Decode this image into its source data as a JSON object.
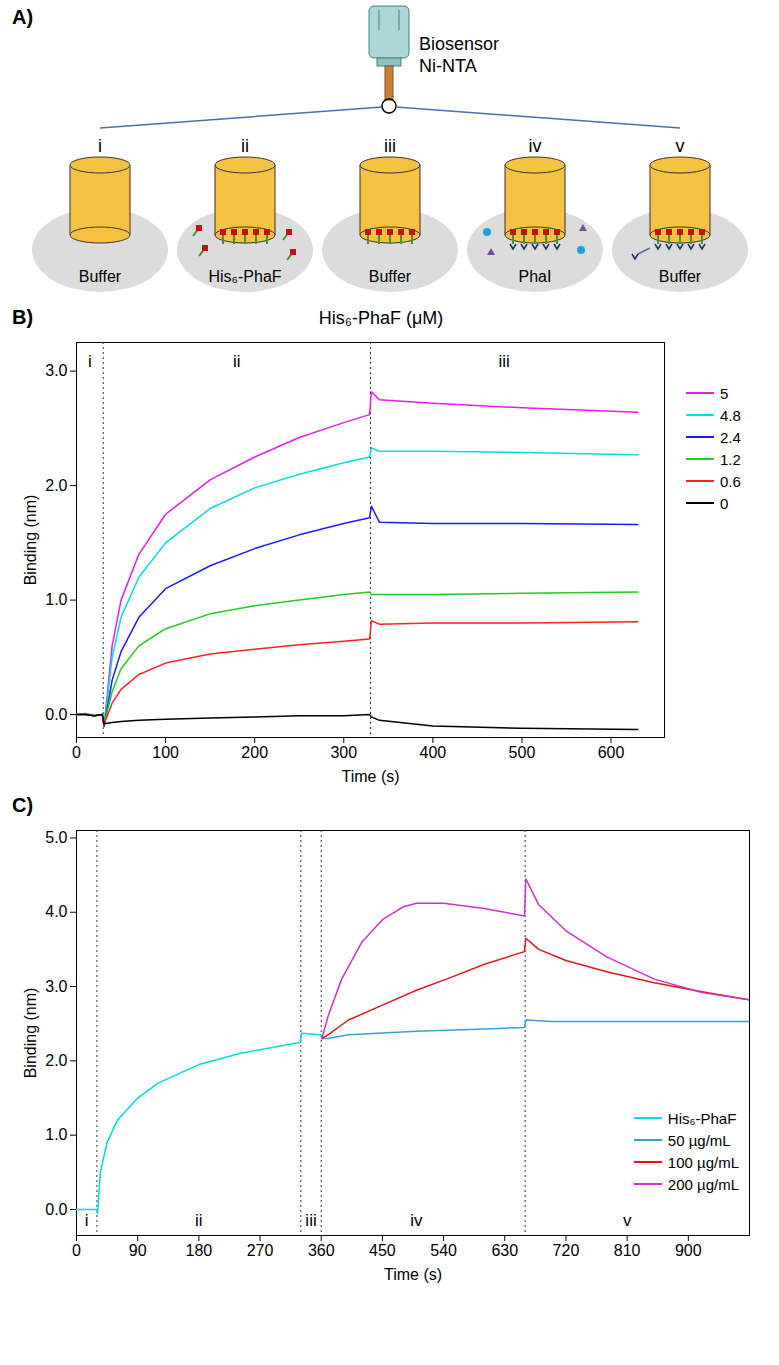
{
  "diagram": {
    "panel_label": "A)",
    "sensor_label": [
      "Biosensor",
      "Ni-NTA"
    ],
    "steps": [
      {
        "label": "i",
        "well": "Buffer"
      },
      {
        "label": "ii",
        "well": "His₆-PhaF"
      },
      {
        "label": "iii",
        "well": "Buffer"
      },
      {
        "label": "iv",
        "well": "PhaI"
      },
      {
        "label": "v",
        "well": "Buffer"
      }
    ]
  },
  "chart_data": [
    {
      "panel_label": "B)",
      "type": "line",
      "title": "His₆-PhaF (μM)",
      "x_label": "Time (s)",
      "y_label": "Binding (nm)",
      "xlim": [
        0,
        660
      ],
      "xticks": [
        0,
        100,
        200,
        300,
        400,
        500,
        600
      ],
      "ylim": [
        -0.2,
        3.25
      ],
      "yticks": [
        0,
        1,
        2,
        3
      ],
      "legend": "right",
      "phase_boundaries": [
        30,
        330
      ],
      "phases": [
        {
          "label": "i",
          "x": 15
        },
        {
          "label": "ii",
          "x": 180
        },
        {
          "label": "iii",
          "x": 480
        }
      ],
      "x": [
        0,
        10,
        20,
        29,
        31,
        40,
        50,
        70,
        100,
        150,
        200,
        250,
        300,
        329,
        331,
        340,
        400,
        500,
        630
      ],
      "series": [
        {
          "name": "5",
          "color": "#e61ee6",
          "values": [
            0,
            0.01,
            -0.01,
            0,
            -0.1,
            0.6,
            1.0,
            1.4,
            1.75,
            2.05,
            2.25,
            2.42,
            2.55,
            2.62,
            2.82,
            2.75,
            2.72,
            2.68,
            2.64
          ]
        },
        {
          "name": "4.8",
          "color": "#00dede",
          "values": [
            0,
            0.01,
            -0.01,
            0,
            -0.1,
            0.5,
            0.85,
            1.2,
            1.5,
            1.8,
            1.98,
            2.1,
            2.2,
            2.25,
            2.33,
            2.3,
            2.3,
            2.29,
            2.27
          ]
        },
        {
          "name": "2.4",
          "color": "#1a1aff",
          "values": [
            0,
            0,
            -0.01,
            0,
            -0.1,
            0.3,
            0.55,
            0.85,
            1.1,
            1.3,
            1.45,
            1.57,
            1.67,
            1.72,
            1.82,
            1.68,
            1.67,
            1.67,
            1.66
          ]
        },
        {
          "name": "1.2",
          "color": "#22cc22",
          "values": [
            0,
            0,
            -0.01,
            0,
            -0.08,
            0.2,
            0.4,
            0.6,
            0.75,
            0.88,
            0.95,
            1.0,
            1.05,
            1.07,
            1.05,
            1.05,
            1.05,
            1.06,
            1.07
          ]
        },
        {
          "name": "0.6",
          "color": "#ff2020",
          "values": [
            0,
            0,
            -0.01,
            0,
            -0.08,
            0.1,
            0.22,
            0.35,
            0.45,
            0.53,
            0.57,
            0.61,
            0.64,
            0.66,
            0.82,
            0.79,
            0.8,
            0.8,
            0.81
          ]
        },
        {
          "name": "0",
          "color": "#000000",
          "values": [
            0,
            0,
            -0.01,
            0,
            -0.08,
            -0.07,
            -0.06,
            -0.05,
            -0.04,
            -0.03,
            -0.02,
            -0.01,
            -0.01,
            0,
            -0.02,
            -0.05,
            -0.1,
            -0.12,
            -0.13
          ]
        }
      ]
    },
    {
      "panel_label": "C)",
      "type": "line",
      "x_label": "Time (s)",
      "y_label": "Binding (nm)",
      "xlim": [
        0,
        990
      ],
      "xticks": [
        0,
        90,
        180,
        270,
        360,
        450,
        540,
        630,
        720,
        810,
        900
      ],
      "ylim": [
        -0.35,
        5.1
      ],
      "yticks": [
        0,
        1,
        2,
        3,
        4,
        5
      ],
      "legend": "lower right",
      "phase_boundaries": [
        30,
        330,
        360,
        660
      ],
      "phases": [
        {
          "label": "i",
          "x": 15
        },
        {
          "label": "ii",
          "x": 180
        },
        {
          "label": "iii",
          "x": 345
        },
        {
          "label": "iv",
          "x": 500
        },
        {
          "label": "v",
          "x": 810
        }
      ],
      "series": [
        {
          "name": "His₆-PhaF",
          "color": "#00dede",
          "x": [
            0,
            29,
            31,
            35,
            45,
            60,
            90,
            120,
            180,
            240,
            300,
            329,
            331,
            359
          ],
          "values": [
            0,
            0,
            -0.05,
            0.5,
            0.9,
            1.2,
            1.5,
            1.7,
            1.95,
            2.1,
            2.2,
            2.25,
            2.37,
            2.35
          ]
        },
        {
          "name": "50 µg/mL",
          "color": "#3d9fd8",
          "x": [
            361,
            370,
            400,
            500,
            600,
            659,
            661,
            700,
            800,
            990
          ],
          "values": [
            2.3,
            2.3,
            2.35,
            2.4,
            2.43,
            2.45,
            2.55,
            2.53,
            2.53,
            2.53
          ]
        },
        {
          "name": "100 µg/mL",
          "color": "#e8141c",
          "x": [
            361,
            370,
            400,
            450,
            500,
            550,
            600,
            659,
            661,
            680,
            720,
            780,
            850,
            920,
            990
          ],
          "values": [
            2.3,
            2.35,
            2.55,
            2.75,
            2.95,
            3.12,
            3.3,
            3.47,
            3.65,
            3.5,
            3.35,
            3.2,
            3.05,
            2.93,
            2.82
          ]
        },
        {
          "name": "200 µg/mL",
          "color": "#cc33cc",
          "x": [
            361,
            370,
            390,
            420,
            450,
            480,
            500,
            540,
            600,
            659,
            661,
            680,
            720,
            780,
            850,
            920,
            990
          ],
          "values": [
            2.3,
            2.6,
            3.1,
            3.6,
            3.9,
            4.07,
            4.12,
            4.12,
            4.05,
            3.95,
            4.45,
            4.1,
            3.75,
            3.4,
            3.1,
            2.92,
            2.82
          ]
        }
      ]
    }
  ]
}
